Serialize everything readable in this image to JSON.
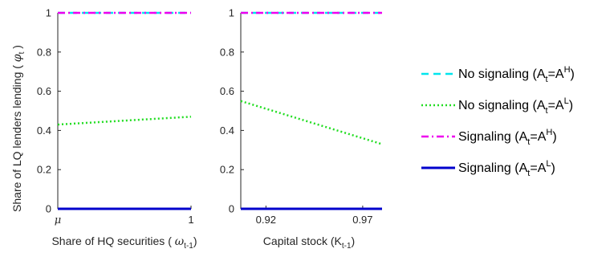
{
  "chart_data": [
    {
      "type": "line",
      "ylabel": "Share of LQ lenders lending ( φt )",
      "xlabel": "Share of HQ securities ( ωt-1 )",
      "xlim": [
        0,
        1
      ],
      "ylim": [
        0,
        1
      ],
      "xticks": [
        {
          "v": 0,
          "label": "μ"
        },
        {
          "v": 1,
          "label": "1"
        }
      ],
      "yticks": [
        {
          "v": 0,
          "label": "0"
        },
        {
          "v": 0.2,
          "label": "0.2"
        },
        {
          "v": 0.4,
          "label": "0.4"
        },
        {
          "v": 0.6,
          "label": "0.6"
        },
        {
          "v": 0.8,
          "label": "0.8"
        },
        {
          "v": 1,
          "label": "1"
        }
      ],
      "series": [
        {
          "name": "No signaling (At=AH)",
          "color": "#00e5ee",
          "dash": "dashed",
          "x": [
            0,
            1
          ],
          "y": [
            1,
            1
          ]
        },
        {
          "name": "No signaling (At=AL)",
          "color": "#22dd22",
          "dash": "dotted",
          "x": [
            0,
            1
          ],
          "y": [
            0.43,
            0.47
          ]
        },
        {
          "name": "Signaling (At=AH)",
          "color": "#ee00ee",
          "dash": "dashdot",
          "x": [
            0,
            1
          ],
          "y": [
            1,
            1
          ]
        },
        {
          "name": "Signaling  (At=AL)",
          "color": "#0000cc",
          "dash": "solid",
          "x": [
            0,
            1
          ],
          "y": [
            0,
            0
          ]
        }
      ]
    },
    {
      "type": "line",
      "xlabel": "Capital stock (Kt-1)",
      "xlim": [
        0.907,
        0.98
      ],
      "ylim": [
        0,
        1
      ],
      "xticks": [
        {
          "v": 0.92,
          "label": "0.92"
        },
        {
          "v": 0.97,
          "label": "0.97"
        }
      ],
      "yticks": [
        {
          "v": 0,
          "label": "0"
        },
        {
          "v": 0.2,
          "label": "0.2"
        },
        {
          "v": 0.4,
          "label": "0.4"
        },
        {
          "v": 0.6,
          "label": "0.6"
        },
        {
          "v": 0.8,
          "label": "0.8"
        },
        {
          "v": 1,
          "label": "1"
        }
      ],
      "series": [
        {
          "name": "No signaling (At=AH)",
          "color": "#00e5ee",
          "dash": "dashed",
          "x": [
            0.907,
            0.98
          ],
          "y": [
            1,
            1
          ]
        },
        {
          "name": "No signaling (At=AL)",
          "color": "#22dd22",
          "dash": "dotted",
          "x": [
            0.907,
            0.98
          ],
          "y": [
            0.55,
            0.33
          ]
        },
        {
          "name": "Signaling (At=AH)",
          "color": "#ee00ee",
          "dash": "dashdot",
          "x": [
            0.907,
            0.98
          ],
          "y": [
            1,
            1
          ]
        },
        {
          "name": "Signaling  (At=AL)",
          "color": "#0000cc",
          "dash": "solid",
          "x": [
            0.907,
            0.98
          ],
          "y": [
            0,
            0
          ]
        }
      ]
    }
  ],
  "text": {
    "ylabel_main": "Share of LQ lenders lending (",
    "ylabel_sym": "φ",
    "ylabel_sub": "t",
    "ylabel_end": ")",
    "xlabel1_main": "Share of HQ securities (",
    "xlabel1_sym": "ω",
    "xlabel1_sub": "t-1",
    "xlabel1_end": ")",
    "xlabel2_main": "Capital stock (K",
    "xlabel2_sub": "t-1",
    "xlabel2_end": ")"
  },
  "legend": [
    {
      "pre": "No signaling (A",
      "sub": "t",
      "mid": "=A",
      "sup": "H",
      "post": ")",
      "color": "#00e5ee",
      "dash": "dashed"
    },
    {
      "pre": "No signaling (A",
      "sub": "t",
      "mid": "=A",
      "sup": "L",
      "post": ")",
      "color": "#22dd22",
      "dash": "dotted"
    },
    {
      "pre": "Signaling (A",
      "sub": "t",
      "mid": "=A",
      "sup": "H",
      "post": ")",
      "color": "#ee00ee",
      "dash": "dashdot"
    },
    {
      "pre": "Signaling  (A",
      "sub": "t",
      "mid": "=A",
      "sup": "L",
      "post": ")",
      "color": "#0000cc",
      "dash": "solid"
    }
  ]
}
